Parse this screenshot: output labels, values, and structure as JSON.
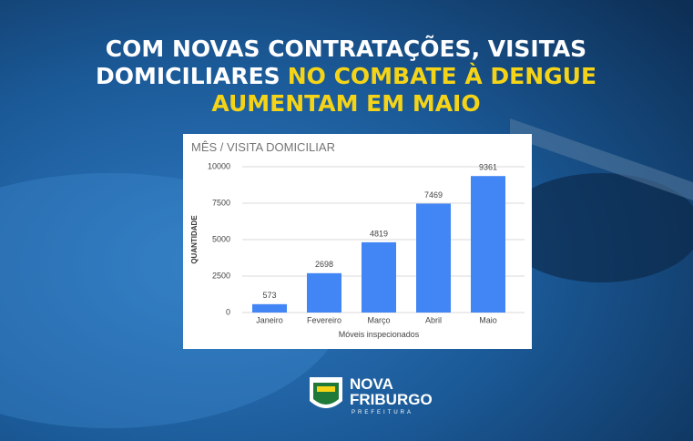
{
  "headline": {
    "line1": "COM NOVAS CONTRATAÇÕES, VISITAS",
    "line2_white": "DOMICILIARES",
    "line2_yellow": "NO COMBATE À DENGUE",
    "line3": "AUMENTAM EM MAIO"
  },
  "chart_data": {
    "type": "bar",
    "title": "MÊS / VISITA DOMICILIAR",
    "categories": [
      "Janeiro",
      "Fevereiro",
      "Março",
      "Abril",
      "Maio"
    ],
    "values": [
      573,
      2698,
      4819,
      7469,
      9361
    ],
    "color": "#4285f4",
    "ylim": [
      0,
      10000
    ],
    "yticks": [
      0,
      2500,
      5000,
      7500,
      10000
    ],
    "grid": true,
    "y_label": "QUANTIDADE",
    "x_label": "Móveis inspecionados"
  },
  "logo": {
    "line1": "NOVA",
    "line2": "FRIBURGO",
    "line3": "PREFEITURA"
  }
}
